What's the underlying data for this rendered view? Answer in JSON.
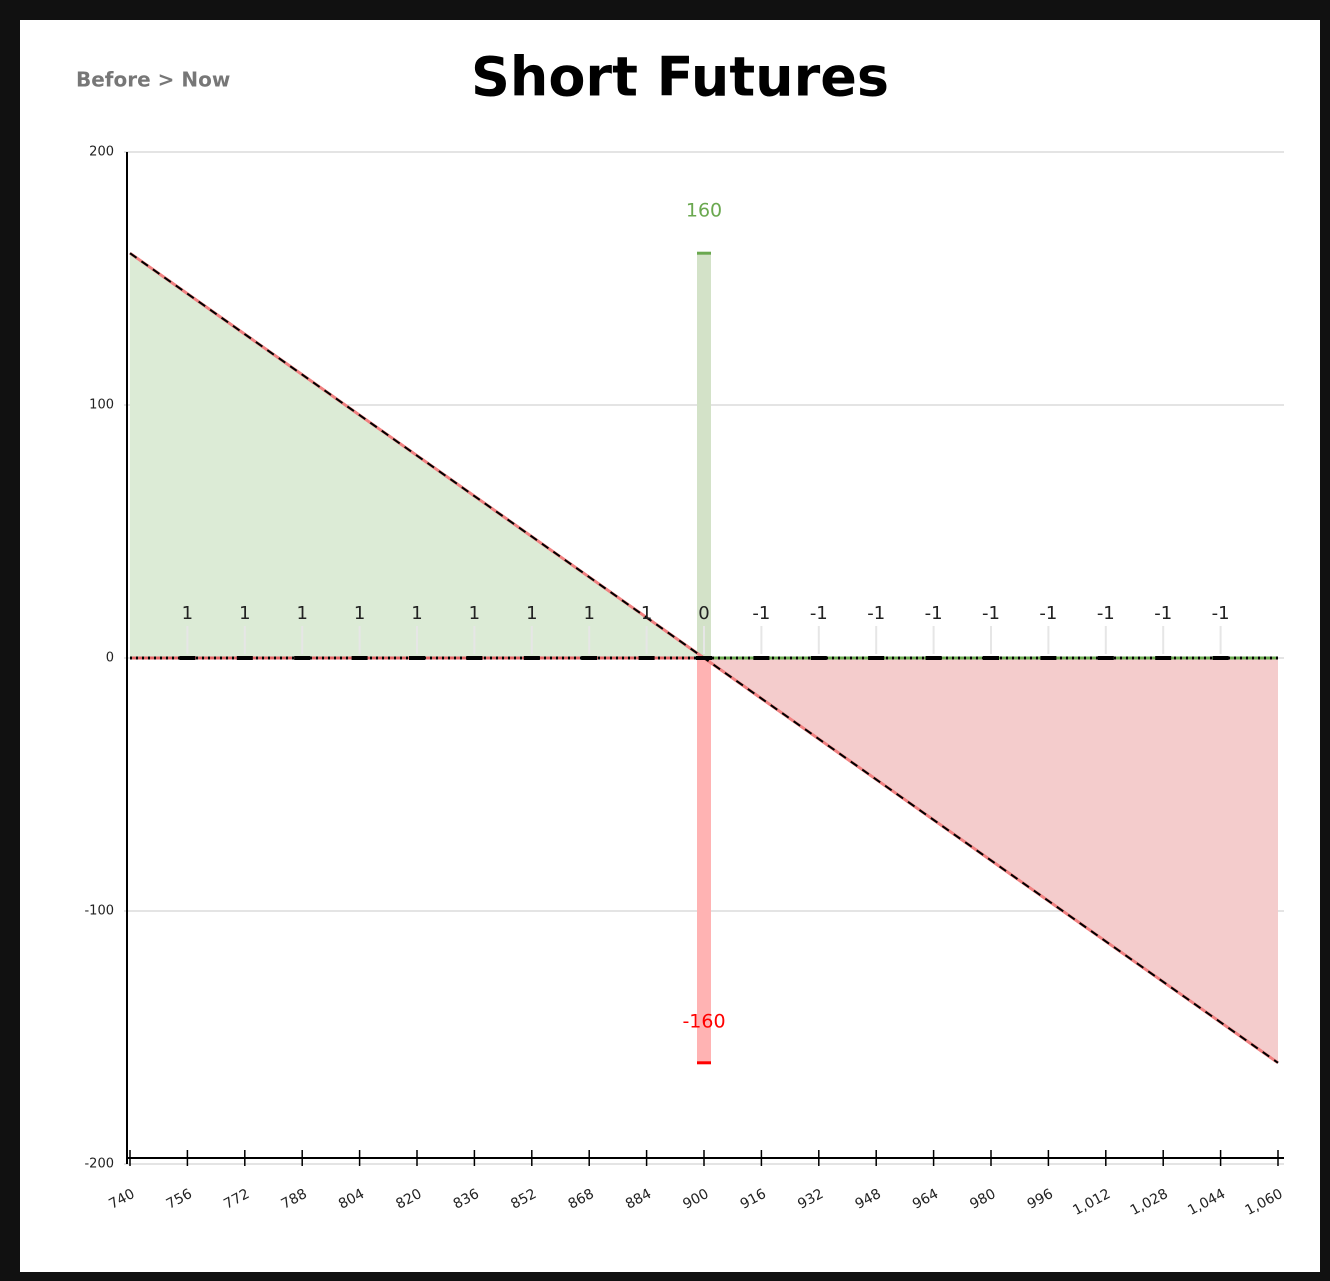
{
  "chart_data": {
    "type": "line",
    "title": "Short Futures",
    "breadcrumb": "Before > Now",
    "xlim": [
      740,
      1060
    ],
    "ylim": [
      -200,
      200
    ],
    "xticks": [
      740,
      756,
      772,
      788,
      804,
      820,
      836,
      852,
      868,
      884,
      900,
      916,
      932,
      948,
      964,
      980,
      996,
      {
        "value": 1012,
        "label": "1,012"
      },
      {
        "value": 1028,
        "label": "1,028"
      },
      {
        "value": 1044,
        "label": "1,044"
      },
      {
        "value": 1060,
        "label": "1,060"
      }
    ],
    "yticks": [
      -200,
      -100,
      0,
      100,
      200
    ],
    "grid": true,
    "payoff": {
      "x": [
        740,
        900,
        1060
      ],
      "values": [
        160,
        0,
        -160
      ],
      "color": "#f08080",
      "profit_fill": "#dcebd6",
      "loss_fill": "#f4cccc"
    },
    "bars": {
      "x": [
        900,
        900
      ],
      "values": [
        160,
        -160
      ],
      "colors": [
        "#d3e2c8",
        "#ffb3b3"
      ],
      "label_colors": [
        "#6aa84f",
        "#ff0000"
      ]
    },
    "markers": {
      "x": [
        756,
        772,
        788,
        804,
        820,
        836,
        852,
        868,
        884,
        900,
        916,
        932,
        948,
        964,
        980,
        996,
        1012,
        1028,
        1044
      ],
      "values": [
        1,
        1,
        1,
        1,
        1,
        1,
        1,
        1,
        1,
        0,
        -1,
        -1,
        -1,
        -1,
        -1,
        -1,
        -1,
        -1,
        -1
      ]
    }
  }
}
